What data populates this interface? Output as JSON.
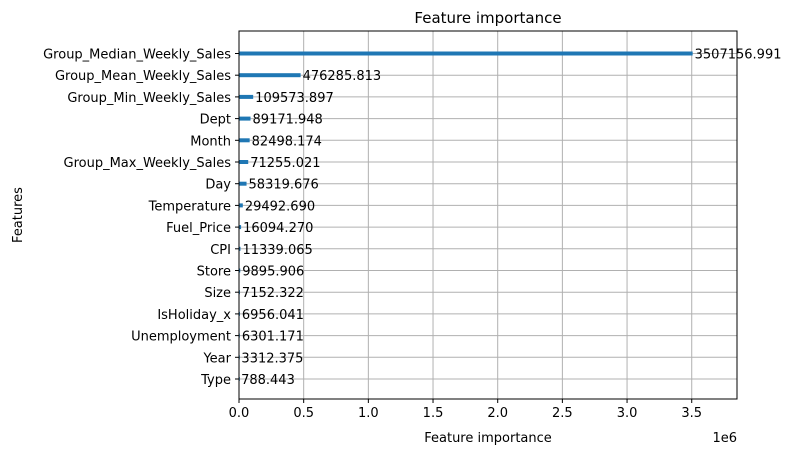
{
  "chart_data": {
    "type": "bar",
    "orientation": "horizontal",
    "title": "Feature importance",
    "xlabel": "Feature importance",
    "ylabel": "Features",
    "x_scale_label": "1e6",
    "xlim": [
      0,
      3850000
    ],
    "xticks": [
      0,
      500000,
      1000000,
      1500000,
      2000000,
      2500000,
      3000000,
      3500000
    ],
    "xtick_labels": [
      "0.0",
      "0.5",
      "1.0",
      "1.5",
      "2.0",
      "2.5",
      "3.0",
      "3.5"
    ],
    "grid": true,
    "bar_color": "#1f77b4",
    "categories": [
      "Group_Median_Weekly_Sales",
      "Group_Mean_Weekly_Sales",
      "Group_Min_Weekly_Sales",
      "Dept",
      "Month",
      "Group_Max_Weekly_Sales",
      "Day",
      "Temperature",
      "Fuel_Price",
      "CPI",
      "Store",
      "Size",
      "IsHoliday_x",
      "Unemployment",
      "Year",
      "Type"
    ],
    "values": [
      3507156.991,
      476285.813,
      109573.897,
      89171.948,
      82498.174,
      71255.021,
      58319.676,
      29492.69,
      16094.27,
      11339.065,
      9895.906,
      7152.322,
      6956.041,
      6301.171,
      3312.375,
      788.443
    ],
    "value_labels": [
      "3507156.991",
      "476285.813",
      "109573.897",
      "89171.948",
      "82498.174",
      "71255.021",
      "58319.676",
      "29492.690",
      "16094.270",
      "11339.065",
      "9895.906",
      "7152.322",
      "6956.041",
      "6301.171",
      "3312.375",
      "788.443"
    ]
  }
}
